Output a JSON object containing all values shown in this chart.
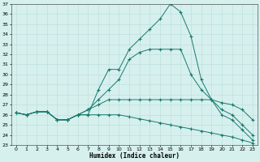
{
  "x": [
    0,
    1,
    2,
    3,
    4,
    5,
    6,
    7,
    8,
    9,
    10,
    11,
    12,
    13,
    14,
    15,
    16,
    17,
    18,
    19,
    20,
    21,
    22,
    23
  ],
  "line1": [
    26.2,
    26.0,
    26.3,
    26.3,
    25.5,
    25.5,
    26.0,
    26.0,
    28.5,
    30.5,
    30.5,
    32.5,
    33.5,
    34.5,
    35.5,
    37.0,
    36.2,
    33.8,
    29.5,
    27.5,
    26.0,
    25.5,
    24.5,
    23.5
  ],
  "line2": [
    26.2,
    26.0,
    26.3,
    26.3,
    25.5,
    25.5,
    26.0,
    26.5,
    27.5,
    28.5,
    29.5,
    31.5,
    32.2,
    32.5,
    32.5,
    32.5,
    32.5,
    30.0,
    28.5,
    27.5,
    26.5,
    26.0,
    25.0,
    24.0
  ],
  "line3": [
    26.2,
    26.0,
    26.3,
    26.3,
    25.5,
    25.5,
    26.0,
    26.5,
    27.0,
    27.5,
    27.5,
    27.5,
    27.5,
    27.5,
    27.5,
    27.5,
    27.5,
    27.5,
    27.5,
    27.5,
    27.2,
    27.0,
    26.5,
    25.5
  ],
  "line4": [
    26.2,
    26.0,
    26.3,
    26.3,
    25.5,
    25.5,
    26.0,
    26.0,
    26.0,
    26.0,
    26.0,
    25.8,
    25.6,
    25.4,
    25.2,
    25.0,
    24.8,
    24.6,
    24.4,
    24.2,
    24.0,
    23.8,
    23.5,
    23.2
  ],
  "line_color": "#1a7a6e",
  "bg_color": "#d6f0ee",
  "grid_color": "#b8ddd9",
  "xlabel": "Humidex (Indice chaleur)",
  "ylim": [
    23,
    37
  ],
  "xlim": [
    -0.5,
    23.5
  ],
  "yticks": [
    23,
    24,
    25,
    26,
    27,
    28,
    29,
    30,
    31,
    32,
    33,
    34,
    35,
    36,
    37
  ],
  "xticks": [
    0,
    1,
    2,
    3,
    4,
    5,
    6,
    7,
    8,
    9,
    10,
    11,
    12,
    13,
    14,
    15,
    16,
    17,
    18,
    19,
    20,
    21,
    22,
    23
  ],
  "tick_fontsize": 4.5,
  "xlabel_fontsize": 5.5
}
